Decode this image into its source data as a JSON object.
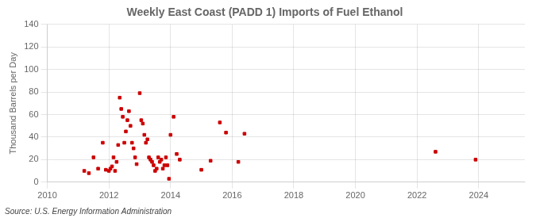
{
  "chart_data": {
    "type": "scatter",
    "title": "Weekly East Coast (PADD 1) Imports of Fuel Ethanol",
    "ylabel": "Thousand Barrels per Day",
    "annotation": "Source: U.S. Energy Information Administration",
    "color": "#cc0000",
    "marker": "square",
    "grid": true,
    "xlim": [
      2010,
      2025.5
    ],
    "ylim": [
      0,
      140
    ],
    "xticks": [
      2010,
      2012,
      2014,
      2016,
      2018,
      2020,
      2022,
      2024
    ],
    "yticks": [
      0,
      20,
      40,
      60,
      80,
      100,
      120,
      140
    ],
    "x": [
      2011.2,
      2011.35,
      2011.5,
      2011.65,
      2011.8,
      2011.9,
      2012.0,
      2012.05,
      2012.1,
      2012.15,
      2012.2,
      2012.25,
      2012.3,
      2012.35,
      2012.4,
      2012.45,
      2012.5,
      2012.55,
      2012.6,
      2012.65,
      2012.7,
      2012.75,
      2012.8,
      2012.85,
      2012.9,
      2013.0,
      2013.05,
      2013.1,
      2013.15,
      2013.2,
      2013.25,
      2013.3,
      2013.35,
      2013.4,
      2013.45,
      2013.5,
      2013.55,
      2013.6,
      2013.65,
      2013.7,
      2013.75,
      2013.8,
      2013.85,
      2013.9,
      2013.95,
      2014.0,
      2014.1,
      2014.2,
      2014.3,
      2015.0,
      2015.3,
      2015.6,
      2015.8,
      2016.2,
      2016.4,
      2022.6,
      2023.9
    ],
    "values": [
      10,
      8,
      22,
      12,
      35,
      11,
      10,
      12,
      14,
      22,
      10,
      18,
      33,
      75,
      65,
      58,
      35,
      45,
      55,
      63,
      50,
      35,
      30,
      22,
      16,
      79,
      55,
      52,
      42,
      35,
      38,
      22,
      20,
      18,
      15,
      10,
      12,
      22,
      18,
      20,
      12,
      15,
      22,
      15,
      3,
      42,
      58,
      25,
      20,
      11,
      19,
      53,
      44,
      18,
      43,
      27,
      20
    ]
  }
}
